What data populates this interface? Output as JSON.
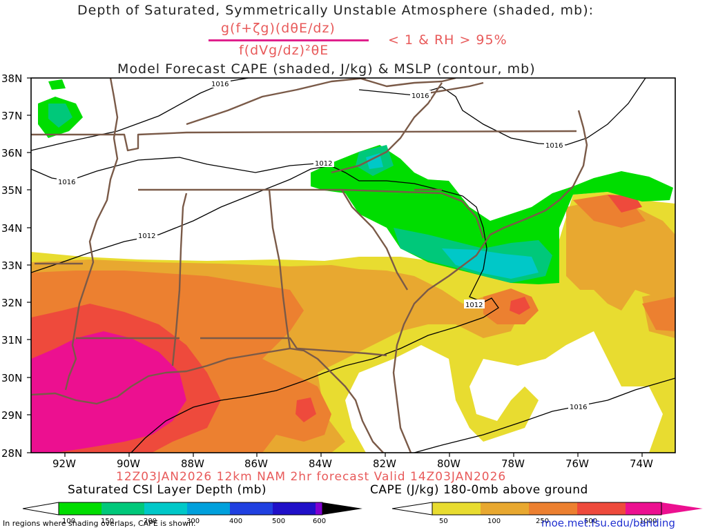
{
  "header": {
    "line1": "Depth of Saturated, Symmetrically Unstable Atmosphere (shaded, mb):",
    "numerator": "g(f+ζg)(dθE/dz)",
    "denominator": "f(dVg/dz)²θE",
    "criterion": "< 1 & RH > 95%",
    "line3": "Model Forecast CAPE (shaded, J/kg) & MSLP (contour, mb)"
  },
  "footer": {
    "valid": "12Z03JAN2026 12km NAM 2hr forecast Valid 14Z03JAN2026",
    "note": "In regions where shading overlaps, CAPE is shown.",
    "url": "moe.met.fsu.edu/banding"
  },
  "axes": {
    "lat_labels": [
      "38N",
      "37N",
      "36N",
      "35N",
      "34N",
      "33N",
      "32N",
      "31N",
      "30N",
      "29N",
      "28N"
    ],
    "lon_labels": [
      "92W",
      "90W",
      "88W",
      "86W",
      "84W",
      "82W",
      "80W",
      "78W",
      "76W",
      "74W"
    ]
  },
  "isobars": {
    "labels": [
      "1016",
      "1016",
      "1016",
      "1016",
      "1012",
      "1012",
      "1012",
      "1016"
    ]
  },
  "colorbars": {
    "csi": {
      "title": "Saturated CSI Layer Depth (mb)",
      "ticks": [
        "100",
        "150",
        "200",
        "300",
        "400",
        "500",
        "600"
      ],
      "colors": [
        "#00dd00",
        "#00c87a",
        "#00c8c8",
        "#00a0dc",
        "#2040e0",
        "#2010c8",
        "#8000d0"
      ]
    },
    "cape": {
      "title": "CAPE (J/kg) 180-0mb above ground",
      "ticks": [
        "50",
        "100",
        "250",
        "500",
        "1000"
      ],
      "colors": [
        "#e8dc30",
        "#e8a830",
        "#ec8030",
        "#ee4a3c",
        "#ec1090"
      ]
    }
  }
}
